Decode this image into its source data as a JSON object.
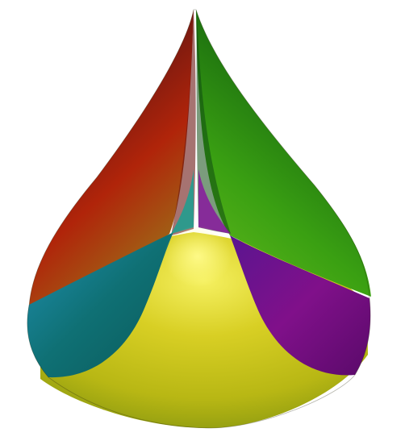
{
  "figure": {
    "subject": "colored-3d-surface",
    "background_color": "#ffffff",
    "colors": {
      "red_lobe": "#9a2a0e",
      "green_lobe": "#2f9a10",
      "teal_lobe": "#0f6f74",
      "purple_lobe": "#7a0f8a",
      "yellow_base": "#c8c41a",
      "center_highlight": "#f5f060"
    }
  }
}
